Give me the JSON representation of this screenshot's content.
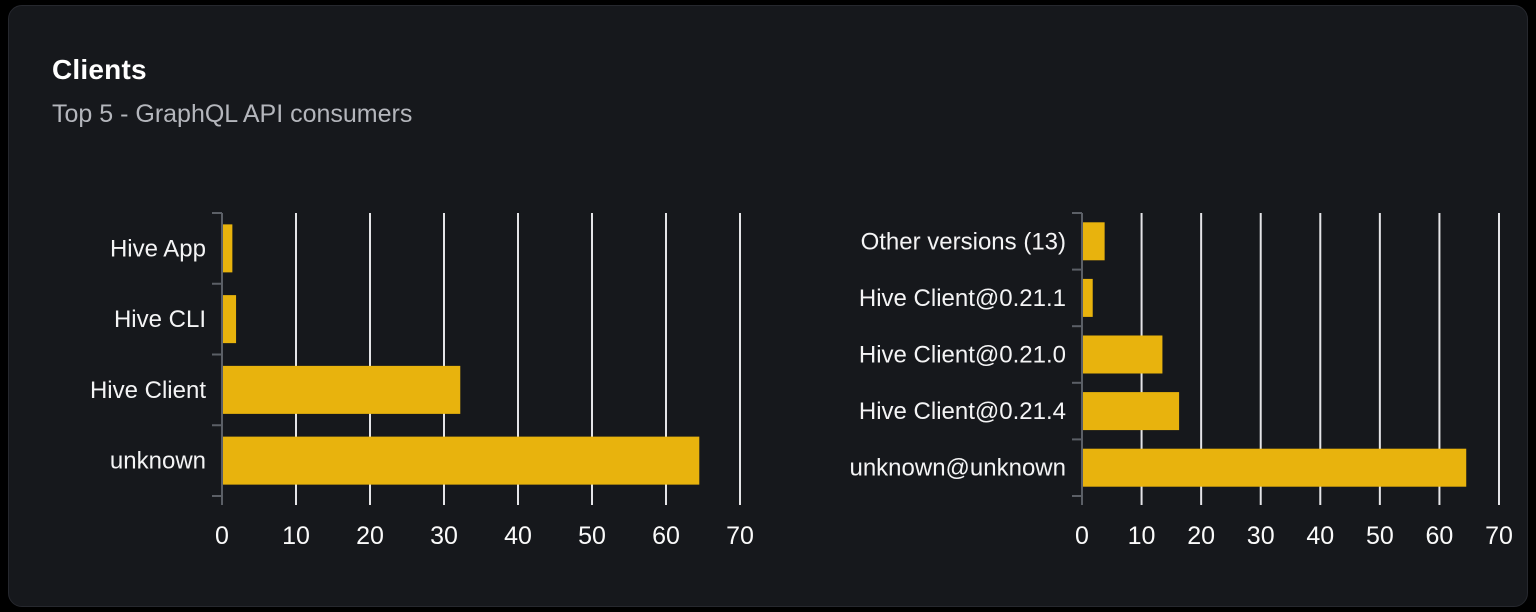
{
  "card": {
    "title": "Clients",
    "subtitle": "Top 5 - GraphQL API consumers"
  },
  "colors": {
    "bar": "#e8b30d",
    "grid_line": "#e4e4e7",
    "axis_line": "#5b5f66",
    "label_text": "#f4f4f5",
    "tick_text": "#fafafa",
    "card_background": "#16181c",
    "page_background": "#000000"
  },
  "chart_data": [
    {
      "type": "bar",
      "orientation": "horizontal",
      "title": "",
      "xlabel": "",
      "ylabel": "",
      "categories": [
        "Hive App",
        "Hive CLI",
        "Hive Client",
        "unknown"
      ],
      "values": [
        1.4,
        1.9,
        32.2,
        64.5
      ],
      "xlim": [
        0,
        70
      ],
      "xticks": [
        0,
        10,
        20,
        30,
        40,
        50,
        60,
        70
      ],
      "grid": true,
      "legend": "none"
    },
    {
      "type": "bar",
      "orientation": "horizontal",
      "title": "",
      "xlabel": "",
      "ylabel": "",
      "categories": [
        "Other versions (13)",
        "Hive Client@0.21.1",
        "Hive Client@0.21.0",
        "Hive Client@0.21.4",
        "unknown@unknown"
      ],
      "values": [
        3.8,
        1.8,
        13.5,
        16.3,
        64.5
      ],
      "xlim": [
        0,
        70
      ],
      "xticks": [
        0,
        10,
        20,
        30,
        40,
        50,
        60,
        70
      ],
      "grid": true,
      "legend": "none"
    }
  ]
}
